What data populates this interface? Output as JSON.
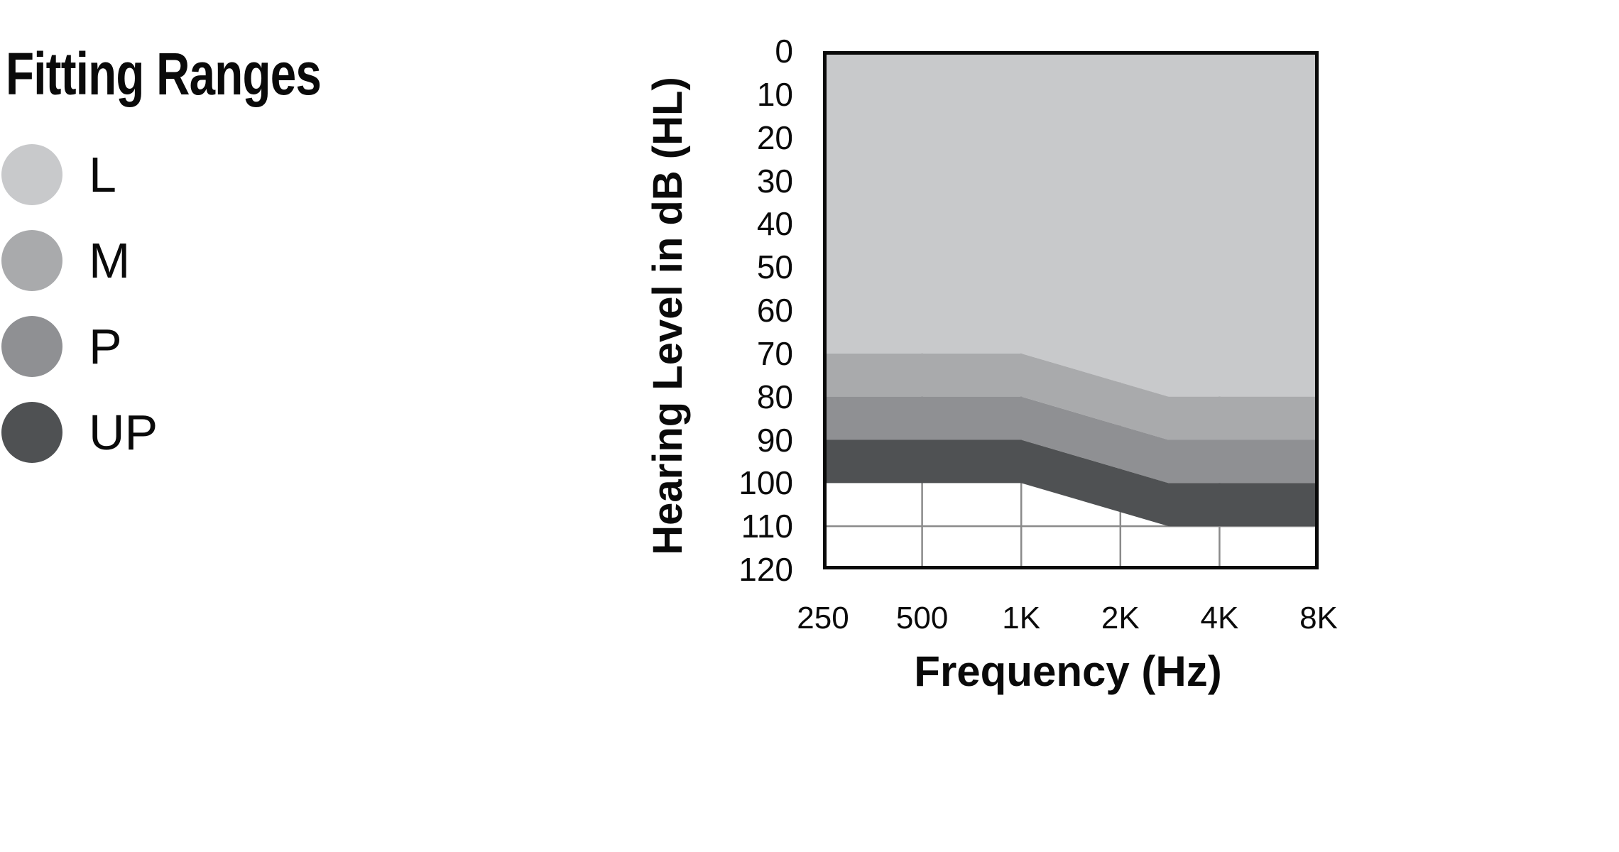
{
  "title": "Fitting Ranges",
  "legend": {
    "items": [
      {
        "label": "L",
        "color": "#c8c9cb"
      },
      {
        "label": "M",
        "color": "#a9aaac"
      },
      {
        "label": "P",
        "color": "#8f9093"
      },
      {
        "label": "UP",
        "color": "#4f5153"
      }
    ]
  },
  "chart_data": {
    "type": "area",
    "title": "Fitting Ranges",
    "xlabel": "Frequency (Hz)",
    "ylabel": "Hearing Level in dB (HL)",
    "x_axis": {
      "scale": "log2",
      "min_hz": 250,
      "max_hz": 8000,
      "ticks": [
        {
          "f": 250,
          "label": "250"
        },
        {
          "f": 500,
          "label": "500"
        },
        {
          "f": 1000,
          "label": "1K"
        },
        {
          "f": 2000,
          "label": "2K"
        },
        {
          "f": 4000,
          "label": "4K"
        },
        {
          "f": 8000,
          "label": "8K"
        }
      ]
    },
    "y_axis": {
      "min_db": 0,
      "max_db": 120,
      "inverted": true,
      "ticks": [
        {
          "db": 0,
          "label": "0"
        },
        {
          "db": 10,
          "label": "10"
        },
        {
          "db": 20,
          "label": "20"
        },
        {
          "db": 30,
          "label": "30"
        },
        {
          "db": 40,
          "label": "40"
        },
        {
          "db": 50,
          "label": "50"
        },
        {
          "db": 60,
          "label": "60"
        },
        {
          "db": 70,
          "label": "70"
        },
        {
          "db": 80,
          "label": "80"
        },
        {
          "db": 90,
          "label": "90"
        },
        {
          "db": 100,
          "label": "100"
        },
        {
          "db": 110,
          "label": "110"
        },
        {
          "db": 120,
          "label": "120"
        }
      ]
    },
    "grid": {
      "vertical_at_hz": [
        500,
        1000,
        2000,
        4000
      ],
      "horizontal_at_db": [
        110
      ],
      "color": "#8a8a8a",
      "width": 2.5
    },
    "plot_border": {
      "color": "#0a0a0a",
      "width": 5
    },
    "background": "#ffffff",
    "bands": [
      {
        "name": "L",
        "color": "#c8c9cb",
        "upper_db": [
          [
            250,
            0
          ],
          [
            8000,
            0
          ]
        ],
        "lower_db": [
          [
            250,
            70
          ],
          [
            1000,
            70
          ],
          [
            2800,
            80
          ],
          [
            8000,
            80
          ]
        ]
      },
      {
        "name": "M",
        "color": "#a9aaac",
        "lower_db": [
          [
            250,
            80
          ],
          [
            1000,
            80
          ],
          [
            2800,
            90
          ],
          [
            8000,
            90
          ]
        ]
      },
      {
        "name": "P",
        "color": "#8f9093",
        "lower_db": [
          [
            250,
            90
          ],
          [
            1000,
            90
          ],
          [
            2800,
            100
          ],
          [
            8000,
            100
          ]
        ]
      },
      {
        "name": "UP",
        "color": "#4f5153",
        "lower_db": [
          [
            250,
            100
          ],
          [
            1000,
            100
          ],
          [
            2800,
            110
          ],
          [
            8000,
            110
          ]
        ]
      }
    ]
  }
}
